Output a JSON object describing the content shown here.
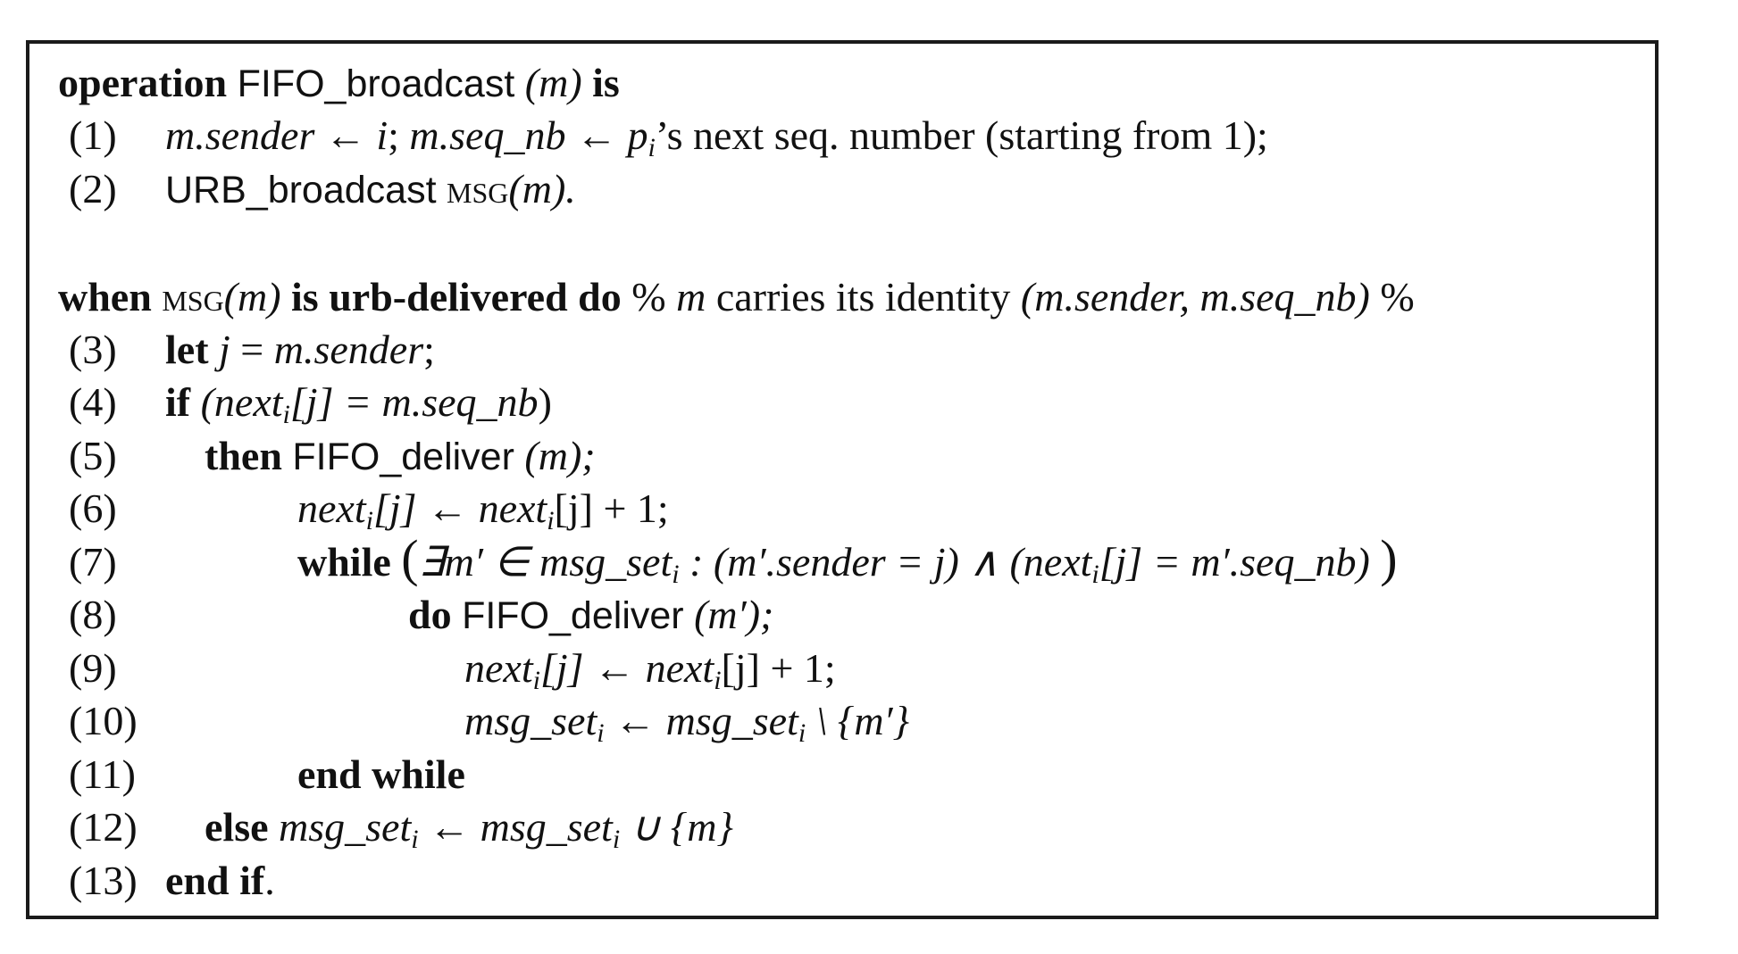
{
  "algorithm": {
    "header1": {
      "kw_operation": "operation",
      "name": "FIFO_broadcast",
      "param": "(m)",
      "kw_is": "is"
    },
    "lines_part1": [
      {
        "num": "(1)",
        "a": "m.sender",
        "b": " ← ",
        "c": "i",
        "d": "; ",
        "e": "m.seq_nb",
        "f": " ← ",
        "g": "p",
        "h": "i",
        "k": "’s next seq. number (starting from 1);"
      },
      {
        "num": "(2)",
        "a": "URB_broadcast",
        "b": " ",
        "c": "msg",
        "d": "(m)."
      }
    ],
    "header2": {
      "kw_when": "when",
      "msg": "msg",
      "param": "(m)",
      "kw_urb": "is urb-delivered do",
      "comment_a": " % ",
      "comment_m": "m",
      "comment_b": " carries its identity ",
      "comment_c": "(m.sender, m.seq_nb)",
      "comment_d": " %"
    },
    "lines_part2": [
      {
        "num": "(3)",
        "kw": "let",
        "a": "j",
        "b": " = ",
        "c": "m.sender",
        "d": ";"
      },
      {
        "num": "(4)",
        "kw": "if",
        "a": " (next",
        "sub": "i",
        "b": "[j] = ",
        "c": "m.seq_nb",
        "d": ")"
      },
      {
        "num": "(5)",
        "kw": "then",
        "a": "FIFO_deliver",
        "b": " (m);"
      },
      {
        "num": "(6)",
        "a": "next",
        "sub": "i",
        "b": "[j] ← ",
        "c": "next",
        "sub2": "i",
        "d": "[j] + 1;"
      },
      {
        "num": "(7)",
        "kw": "while",
        "a": "∃m′ ∈ msg_set",
        "sub": "i",
        "b": " : (m′.sender = j) ∧ (next",
        "sub2": "i",
        "c": "[j] = m′.seq_nb)"
      },
      {
        "num": "(8)",
        "kw": "do",
        "a": "FIFO_deliver",
        "b": " (m′);"
      },
      {
        "num": "(9)",
        "a": "next",
        "sub": "i",
        "b": "[j] ← ",
        "c": "next",
        "sub2": "i",
        "d": "[j] + 1;"
      },
      {
        "num": "(10)",
        "a": "msg_set",
        "sub": "i",
        "b": " ← ",
        "c": "msg_set",
        "sub2": "i",
        "d": " \\ {m′}"
      },
      {
        "num": "(11)",
        "kw": "end while"
      },
      {
        "num": "(12)",
        "kw": "else",
        "a": "msg_set",
        "sub": "i",
        "b": " ← ",
        "c": "msg_set",
        "sub2": "i",
        "d": " ∪ {m}"
      },
      {
        "num": "(13)",
        "kw": "end if",
        "a": "."
      }
    ]
  }
}
